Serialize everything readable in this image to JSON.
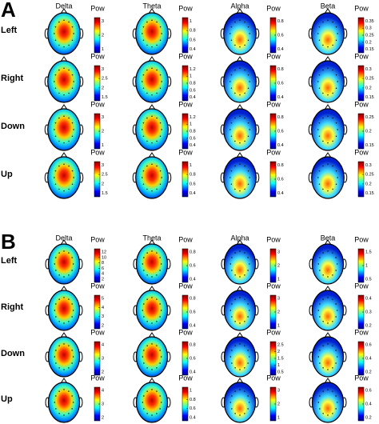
{
  "panels": [
    {
      "label": "A",
      "bands": [
        "Delta",
        "Theta",
        "Alpha",
        "Beta"
      ],
      "colorbar_title": "Pow",
      "rows": [
        {
          "direction": "Left",
          "colorbar_ticks": [
            [
              3,
              2,
              1
            ],
            [
              1,
              0.8,
              0.6,
              0.4
            ],
            [
              0.8,
              0.6,
              0.4
            ],
            [
              0.35,
              0.3,
              0.25,
              0.2,
              0.15
            ]
          ]
        },
        {
          "direction": "Right",
          "colorbar_ticks": [
            [
              3,
              2.5,
              2,
              1.5
            ],
            [
              1.2,
              1,
              0.8,
              0.6,
              0.4
            ],
            [
              0.8,
              0.6,
              0.4
            ],
            [
              0.3,
              0.25,
              0.2,
              0.15
            ]
          ]
        },
        {
          "direction": "Down",
          "colorbar_ticks": [
            [
              3,
              2,
              1
            ],
            [
              1.2,
              1,
              0.8,
              0.6,
              0.4
            ],
            [
              0.8,
              0.6,
              0.4
            ],
            [
              0.25,
              0.2,
              0.15
            ]
          ]
        },
        {
          "direction": "Up",
          "colorbar_ticks": [
            [
              3,
              2.5,
              2,
              1.5
            ],
            [
              1,
              0.8,
              0.6,
              0.4
            ],
            [
              0.8,
              0.6,
              0.4
            ],
            [
              0.3,
              0.25,
              0.2,
              0.15
            ]
          ]
        }
      ]
    },
    {
      "label": "B",
      "bands": [
        "Delta",
        "Theta",
        "Alpha",
        "Beta"
      ],
      "colorbar_title": "Pow",
      "rows": [
        {
          "direction": "Left",
          "colorbar_ticks": [
            [
              12,
              10,
              8,
              6,
              4,
              2
            ],
            [
              0.8,
              0.6,
              0.4
            ],
            [
              3,
              2,
              1
            ],
            [
              1.5,
              1,
              0.5
            ]
          ]
        },
        {
          "direction": "Right",
          "colorbar_ticks": [
            [
              5,
              4,
              3,
              2
            ],
            [
              0.8,
              0.6,
              0.4
            ],
            [
              3,
              2,
              1
            ],
            [
              0.4,
              0.3,
              0.2
            ]
          ]
        },
        {
          "direction": "Down",
          "colorbar_ticks": [
            [
              4,
              3,
              2
            ],
            [
              0.8,
              0.6,
              0.4
            ],
            [
              2.5,
              2,
              1.5,
              1,
              0.5
            ],
            [
              0.6,
              0.4,
              0.2
            ]
          ]
        },
        {
          "direction": "Up",
          "colorbar_ticks": [
            [
              4,
              3,
              2
            ],
            [
              1,
              0.8,
              0.6,
              0.4
            ],
            [
              3,
              2,
              1
            ],
            [
              0.6,
              0.4,
              0.2
            ]
          ]
        }
      ]
    }
  ]
}
